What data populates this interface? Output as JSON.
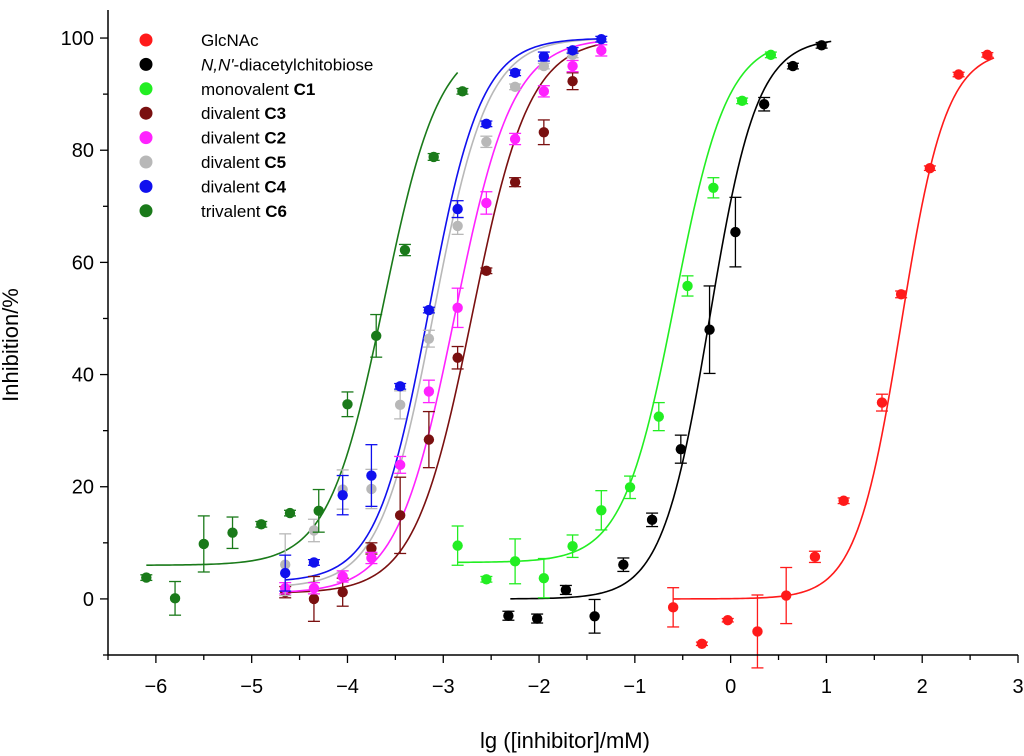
{
  "chart_data": {
    "type": "scatter",
    "title": "",
    "xlabel": "lg ([inhibitor]/mM)",
    "ylabel": "Inhibition/%",
    "xlim": [
      -6.5,
      3
    ],
    "ylim": [
      -10,
      105
    ],
    "x_ticks": [
      -6,
      -5,
      -4,
      -3,
      -2,
      -1,
      0,
      1,
      2,
      3
    ],
    "y_ticks": [
      0,
      20,
      40,
      60,
      80,
      100
    ],
    "legend_position": "top-left",
    "grid": false,
    "series": [
      {
        "name": "GlcNAc",
        "legend": {
          "pre": "GlcNAc",
          "em": "",
          "post": "",
          "bold": ""
        },
        "color": "#ff1a1a",
        "points": [
          {
            "x": -0.6,
            "y": -1.5,
            "err": 3.5
          },
          {
            "x": -0.3,
            "y": -8,
            "err": 0.3
          },
          {
            "x": -0.03,
            "y": -3.8,
            "err": 0.3
          },
          {
            "x": 0.28,
            "y": -5.8,
            "err": 6.5
          },
          {
            "x": 0.58,
            "y": 0.6,
            "err": 5.0
          },
          {
            "x": 0.88,
            "y": 7.5,
            "err": 1.0
          },
          {
            "x": 1.18,
            "y": 17.5,
            "err": 0.5
          },
          {
            "x": 1.58,
            "y": 35,
            "err": 1.5
          },
          {
            "x": 1.78,
            "y": 54.3,
            "err": 0.6
          },
          {
            "x": 2.08,
            "y": 76.8,
            "err": 0.4
          },
          {
            "x": 2.38,
            "y": 93.5,
            "err": 0.4
          },
          {
            "x": 2.68,
            "y": 97,
            "err": 0.4
          }
        ],
        "fit": {
          "bottom": 0,
          "top": 98,
          "logEC50": 1.78,
          "hill": 1.85,
          "x_from": -0.6,
          "x_to": 2.75
        }
      },
      {
        "name": "N,N'-diacetylchitobiose",
        "legend": {
          "pre": "",
          "em": "N,N'",
          "post": "-diacetylchitobiose",
          "bold": ""
        },
        "color": "#000000",
        "points": [
          {
            "x": -2.32,
            "y": -3,
            "err": 0.8
          },
          {
            "x": -2.02,
            "y": -3.5,
            "err": 0.8
          },
          {
            "x": -1.72,
            "y": 1.6,
            "err": 0.8
          },
          {
            "x": -1.42,
            "y": -3.1,
            "err": 3.0
          },
          {
            "x": -1.12,
            "y": 6.1,
            "err": 1.2
          },
          {
            "x": -0.82,
            "y": 14.1,
            "err": 1.2
          },
          {
            "x": -0.52,
            "y": 26.7,
            "err": 2.5
          },
          {
            "x": -0.22,
            "y": 48,
            "err": 7.8
          },
          {
            "x": 0.05,
            "y": 65.4,
            "err": 6.2
          },
          {
            "x": 0.35,
            "y": 88.2,
            "err": 1.2
          },
          {
            "x": 0.65,
            "y": 95,
            "err": 0.5
          },
          {
            "x": 0.95,
            "y": 98.7,
            "err": 0.5
          }
        ],
        "fit": {
          "bottom": 0,
          "top": 100,
          "logEC50": -0.22,
          "hill": 1.75,
          "x_from": -2.3,
          "x_to": 1.05
        }
      },
      {
        "name": "monovalent C1",
        "legend": {
          "pre": "monovalent ",
          "em": "",
          "post": "",
          "bold": "C1"
        },
        "color": "#22ee22",
        "points": [
          {
            "x": -2.85,
            "y": 9.5,
            "err": 3.5
          },
          {
            "x": -2.55,
            "y": 3.5,
            "err": 0.5
          },
          {
            "x": -2.25,
            "y": 6.7,
            "err": 4.0
          },
          {
            "x": -1.95,
            "y": 3.7,
            "err": 3.5
          },
          {
            "x": -1.65,
            "y": 9.4,
            "err": 2.0
          },
          {
            "x": -1.35,
            "y": 15.8,
            "err": 3.5
          },
          {
            "x": -1.05,
            "y": 19.9,
            "err": 2.0
          },
          {
            "x": -0.75,
            "y": 32.5,
            "err": 2.5
          },
          {
            "x": -0.45,
            "y": 55.8,
            "err": 1.8
          },
          {
            "x": -0.18,
            "y": 73.3,
            "err": 1.8
          },
          {
            "x": 0.12,
            "y": 88.8,
            "err": 0.5
          },
          {
            "x": 0.42,
            "y": 97,
            "err": 0.5
          }
        ],
        "fit": {
          "bottom": 6.5,
          "top": 100,
          "logEC50": -0.58,
          "hill": 1.6,
          "x_from": -2.85,
          "x_to": 0.4
        }
      },
      {
        "name": "divalent C3",
        "legend": {
          "pre": "divalent ",
          "em": "",
          "post": "",
          "bold": "C3"
        },
        "color": "#7a1010",
        "points": [
          {
            "x": -4.65,
            "y": 1.2,
            "err": 1.0
          },
          {
            "x": -4.35,
            "y": 0,
            "err": 4.0
          },
          {
            "x": -4.05,
            "y": 1.2,
            "err": 2.5
          },
          {
            "x": -3.75,
            "y": 9,
            "err": 1.0
          },
          {
            "x": -3.45,
            "y": 14.9,
            "err": 6.8
          },
          {
            "x": -3.15,
            "y": 28.4,
            "err": 5.0
          },
          {
            "x": -2.85,
            "y": 43,
            "err": 2.0
          },
          {
            "x": -2.55,
            "y": 58.5,
            "err": 0.5
          },
          {
            "x": -2.25,
            "y": 74.3,
            "err": 0.8
          },
          {
            "x": -1.95,
            "y": 83.2,
            "err": 2.2
          },
          {
            "x": -1.65,
            "y": 92.3,
            "err": 1.5
          }
        ],
        "fit": {
          "bottom": 1,
          "top": 100,
          "logEC50": -2.7,
          "hill": 1.45,
          "x_from": -4.65,
          "x_to": -1.35
        }
      },
      {
        "name": "divalent C2",
        "legend": {
          "pre": "divalent ",
          "em": "",
          "post": "",
          "bold": "C2"
        },
        "color": "#ff22ff",
        "points": [
          {
            "x": -4.65,
            "y": 1.9,
            "err": 1.0
          },
          {
            "x": -4.35,
            "y": 1.9,
            "err": 1.0
          },
          {
            "x": -4.05,
            "y": 4,
            "err": 1.0
          },
          {
            "x": -3.75,
            "y": 7.3,
            "err": 1.0
          },
          {
            "x": -3.45,
            "y": 23.9,
            "err": 1.5
          },
          {
            "x": -3.15,
            "y": 37,
            "err": 2.0
          },
          {
            "x": -2.85,
            "y": 51.9,
            "err": 3.5
          },
          {
            "x": -2.55,
            "y": 70.6,
            "err": 2.0
          },
          {
            "x": -2.25,
            "y": 82,
            "err": 1.0
          },
          {
            "x": -1.95,
            "y": 90.5,
            "err": 1.0
          },
          {
            "x": -1.65,
            "y": 95,
            "err": 1.0
          },
          {
            "x": -1.35,
            "y": 97.8,
            "err": 1.0
          }
        ],
        "fit": {
          "bottom": 1,
          "top": 100,
          "logEC50": -2.88,
          "hill": 1.45,
          "x_from": -4.65,
          "x_to": -1.35
        }
      },
      {
        "name": "divalent C5",
        "legend": {
          "pre": "divalent ",
          "em": "",
          "post": "",
          "bold": "C5"
        },
        "color": "#b8b8b8",
        "points": [
          {
            "x": -4.65,
            "y": 6.1,
            "err": 5.5
          },
          {
            "x": -4.35,
            "y": 12.2,
            "err": 2.0
          },
          {
            "x": -4.05,
            "y": 19.5,
            "err": 3.5
          },
          {
            "x": -3.75,
            "y": 19.6,
            "err": 3.5
          },
          {
            "x": -3.45,
            "y": 34.6,
            "err": 2.5
          },
          {
            "x": -3.15,
            "y": 46.4,
            "err": 1.5
          },
          {
            "x": -2.85,
            "y": 66.5,
            "err": 1.5
          },
          {
            "x": -2.55,
            "y": 81.5,
            "err": 1.0
          },
          {
            "x": -2.25,
            "y": 91.3,
            "err": 0.5
          },
          {
            "x": -1.95,
            "y": 95,
            "err": 0.5
          },
          {
            "x": -1.65,
            "y": 97,
            "err": 0.5
          }
        ],
        "fit": {
          "bottom": 2,
          "top": 100,
          "logEC50": -3.1,
          "hill": 1.55,
          "x_from": -4.65,
          "x_to": -1.35
        }
      },
      {
        "name": "divalent C4",
        "legend": {
          "pre": "divalent ",
          "em": "",
          "post": "",
          "bold": "C4"
        },
        "color": "#1010ee",
        "points": [
          {
            "x": -4.65,
            "y": 4.6,
            "err": 3.2
          },
          {
            "x": -4.35,
            "y": 6.5,
            "err": 0.5
          },
          {
            "x": -4.05,
            "y": 18.5,
            "err": 3.5
          },
          {
            "x": -3.75,
            "y": 22,
            "err": 5.5
          },
          {
            "x": -3.45,
            "y": 37.9,
            "err": 0.5
          },
          {
            "x": -3.15,
            "y": 51.5,
            "err": 0.5
          },
          {
            "x": -2.85,
            "y": 69.5,
            "err": 1.5
          },
          {
            "x": -2.55,
            "y": 84.7,
            "err": 0.5
          },
          {
            "x": -2.25,
            "y": 93.8,
            "err": 0.5
          },
          {
            "x": -1.95,
            "y": 96.7,
            "err": 0.8
          },
          {
            "x": -1.65,
            "y": 97.8,
            "err": 0.5
          },
          {
            "x": -1.35,
            "y": 99.8,
            "err": 0.5
          }
        ],
        "fit": {
          "bottom": 3,
          "top": 100,
          "logEC50": -3.15,
          "hill": 1.6,
          "x_from": -4.65,
          "x_to": -1.35
        }
      },
      {
        "name": "trivalent C6",
        "legend": {
          "pre": "trivalent ",
          "em": "",
          "post": "",
          "bold": "C6"
        },
        "color": "#1a7a1a",
        "points": [
          {
            "x": -6.1,
            "y": 3.8,
            "err": 0.5
          },
          {
            "x": -5.8,
            "y": 0.1,
            "err": 3.0
          },
          {
            "x": -5.5,
            "y": 9.8,
            "err": 5.0
          },
          {
            "x": -5.2,
            "y": 11.8,
            "err": 2.8
          },
          {
            "x": -4.9,
            "y": 13.3,
            "err": 0.5
          },
          {
            "x": -4.6,
            "y": 15.3,
            "err": 0.5
          },
          {
            "x": -4.3,
            "y": 15.7,
            "err": 3.8
          },
          {
            "x": -4.0,
            "y": 34.7,
            "err": 2.2
          },
          {
            "x": -3.7,
            "y": 46.9,
            "err": 3.8
          },
          {
            "x": -3.4,
            "y": 62.2,
            "err": 1.0
          },
          {
            "x": -3.1,
            "y": 78.8,
            "err": 0.6
          },
          {
            "x": -2.8,
            "y": 90.5,
            "err": 0.5
          }
        ],
        "fit": {
          "bottom": 6,
          "top": 100,
          "logEC50": -3.62,
          "hill": 1.5,
          "x_from": -6.1,
          "x_to": -2.85
        }
      }
    ]
  }
}
